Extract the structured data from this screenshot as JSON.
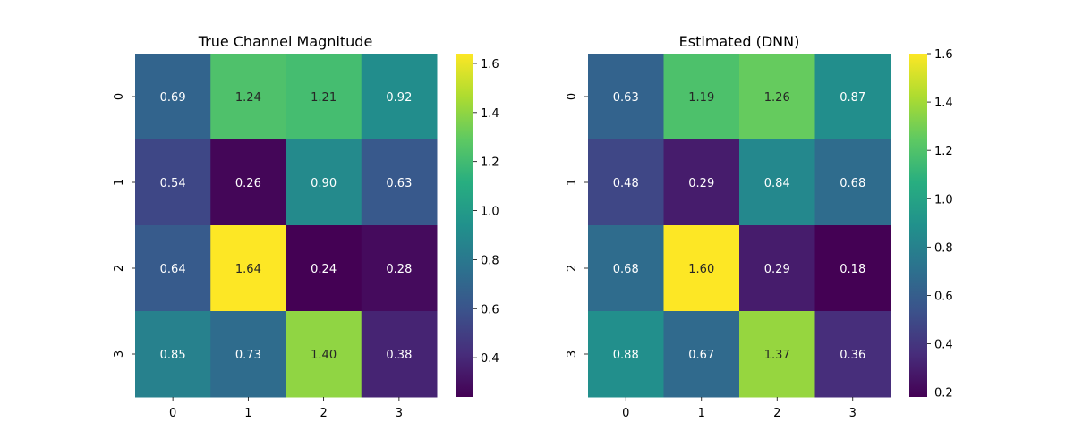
{
  "chart_data": [
    {
      "type": "heatmap",
      "title": "True Channel Magnitude",
      "xlabel": "",
      "ylabel": "",
      "x_tick_labels": [
        "0",
        "1",
        "2",
        "3"
      ],
      "y_tick_labels": [
        "0",
        "1",
        "2",
        "3"
      ],
      "values": [
        [
          0.69,
          1.24,
          1.21,
          0.92
        ],
        [
          0.54,
          0.26,
          0.9,
          0.63
        ],
        [
          0.64,
          1.64,
          0.24,
          0.28
        ],
        [
          0.85,
          0.73,
          1.4,
          0.38
        ]
      ],
      "cell_labels": [
        [
          "0.69",
          "1.24",
          "1.21",
          "0.92"
        ],
        [
          "0.54",
          "0.26",
          "0.90",
          "0.63"
        ],
        [
          "0.64",
          "1.64",
          "0.24",
          "0.28"
        ],
        [
          "0.85",
          "0.73",
          "1.40",
          "0.38"
        ]
      ],
      "colormap": "viridis",
      "color_range": [
        0.24,
        1.64
      ],
      "colorbar_ticks": [
        0.4,
        0.6,
        0.8,
        1.0,
        1.2,
        1.4,
        1.6
      ],
      "colorbar_tick_labels": [
        "0.4",
        "0.6",
        "0.8",
        "1.0",
        "1.2",
        "1.4",
        "1.6"
      ],
      "grid": false
    },
    {
      "type": "heatmap",
      "title": "Estimated (DNN)",
      "xlabel": "",
      "ylabel": "",
      "x_tick_labels": [
        "0",
        "1",
        "2",
        "3"
      ],
      "y_tick_labels": [
        "0",
        "1",
        "2",
        "3"
      ],
      "values": [
        [
          0.63,
          1.19,
          1.26,
          0.87
        ],
        [
          0.48,
          0.29,
          0.84,
          0.68
        ],
        [
          0.68,
          1.6,
          0.29,
          0.18
        ],
        [
          0.88,
          0.67,
          1.37,
          0.36
        ]
      ],
      "cell_labels": [
        [
          "0.63",
          "1.19",
          "1.26",
          "0.87"
        ],
        [
          "0.48",
          "0.29",
          "0.84",
          "0.68"
        ],
        [
          "0.68",
          "1.60",
          "0.29",
          "0.18"
        ],
        [
          "0.88",
          "0.67",
          "1.37",
          "0.36"
        ]
      ],
      "colormap": "viridis",
      "color_range": [
        0.18,
        1.6
      ],
      "colorbar_ticks": [
        0.2,
        0.4,
        0.6,
        0.8,
        1.0,
        1.2,
        1.4,
        1.6
      ],
      "colorbar_tick_labels": [
        "0.2",
        "0.4",
        "0.6",
        "0.8",
        "1.0",
        "1.2",
        "1.4",
        "1.6"
      ],
      "grid": false
    }
  ]
}
